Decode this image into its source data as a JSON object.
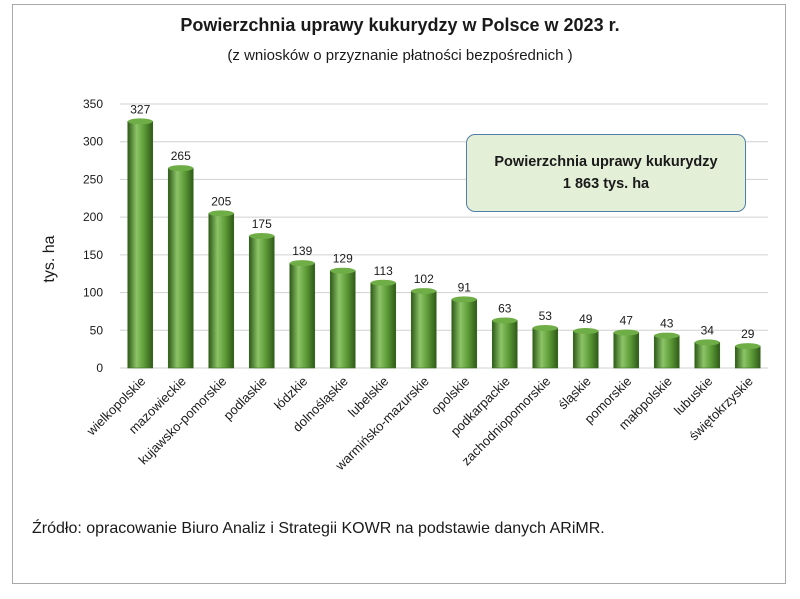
{
  "chart_data": {
    "type": "bar",
    "title": "Powierzchnia uprawy kukurydzy w Polsce w 2023 r.",
    "subtitle": "(z wniosków o przyznanie płatności bezpośrednich )",
    "ylabel": "tys. ha",
    "xlabel": "",
    "ylim": [
      0,
      350
    ],
    "yticks": [
      0,
      50,
      100,
      150,
      200,
      250,
      300,
      350
    ],
    "grid": true,
    "categories": [
      "wielkopolskie",
      "mazowieckie",
      "kujawsko-pomorskie",
      "podlaskie",
      "łódzkie",
      "dolnośląskie",
      "lubelskie",
      "warmińsko-mazurskie",
      "opolskie",
      "podkarpackie",
      "zachodniopomorskie",
      "śląskie",
      "pomorskie",
      "małopolskie",
      "lubuskie",
      "świętokrzyskie"
    ],
    "values": [
      327,
      265,
      205,
      175,
      139,
      129,
      113,
      102,
      91,
      63,
      53,
      49,
      47,
      43,
      34,
      29
    ],
    "colors": {
      "bar": "#4e8a2e",
      "bar_light": "#8cc467",
      "bar_dark": "#2f5a19",
      "grid": "#d0d0d0"
    }
  },
  "infobox": {
    "line1": "Powierzchnia uprawy kukurydzy",
    "line2": "1 863 tys. ha"
  },
  "source": "Źródło: opracowanie Biuro Analiz i Strategii KOWR na podstawie danych ARiMR."
}
